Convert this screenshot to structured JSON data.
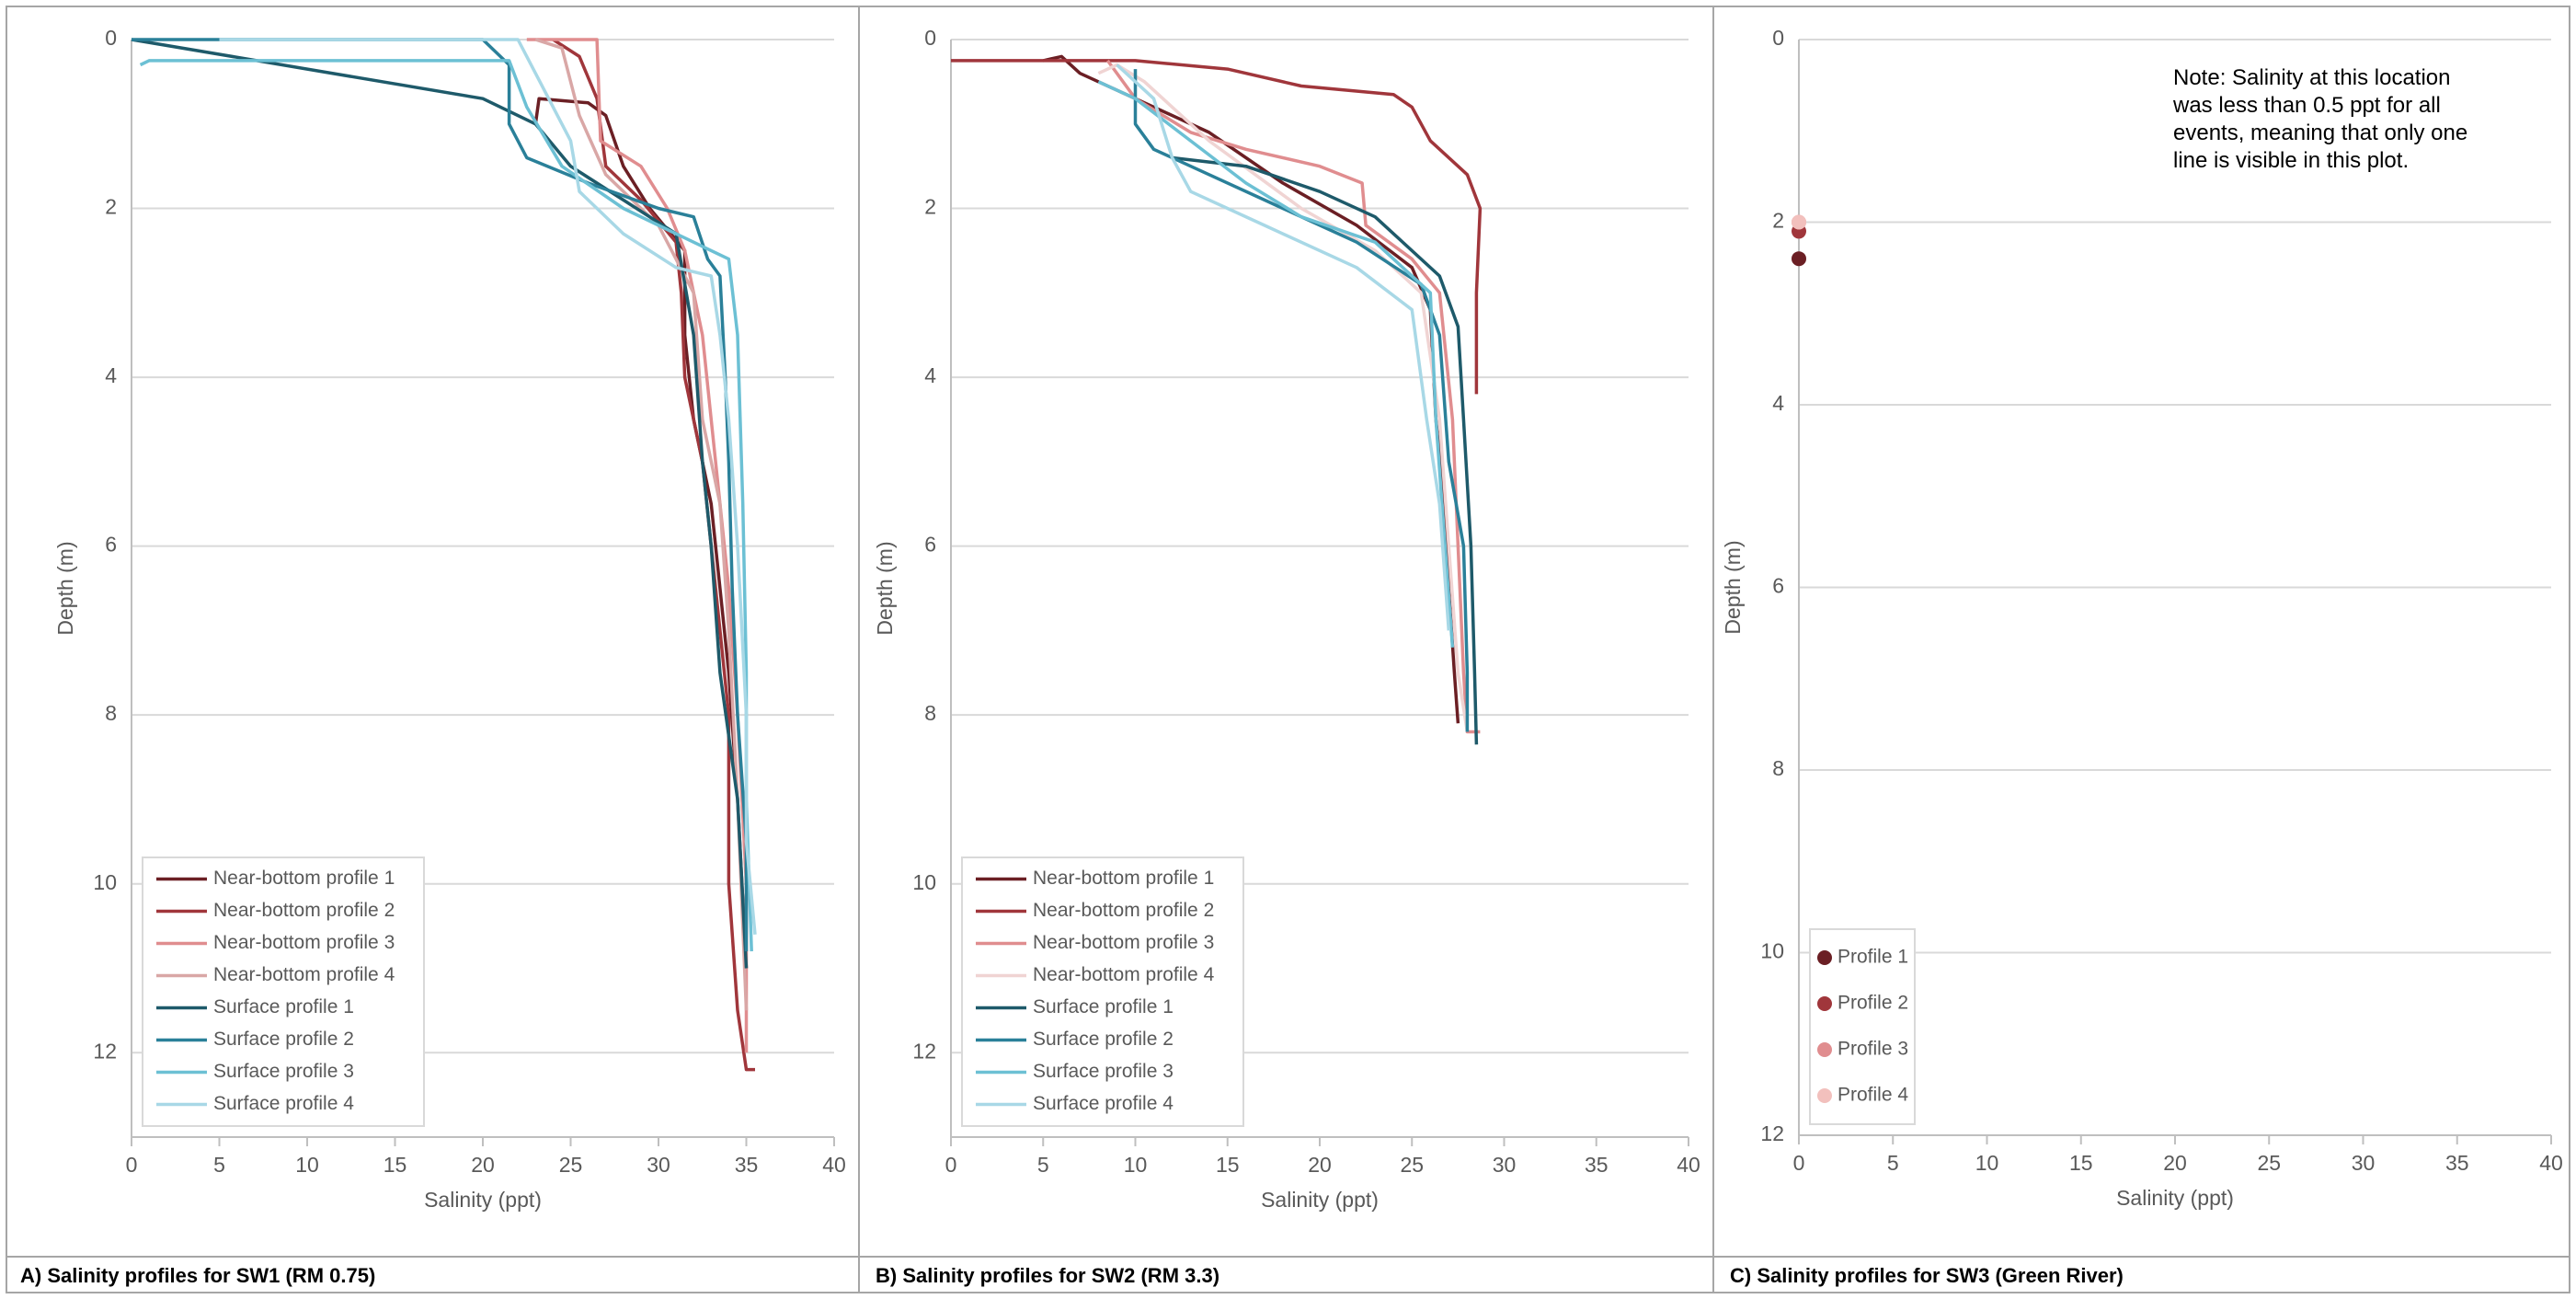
{
  "chart_data": [
    {
      "type": "line",
      "caption": "A) Salinity profiles for SW1 (RM 0.75)",
      "xlabel": "Salinity (ppt)",
      "ylabel": "Depth (m)",
      "xlim": [
        0,
        40
      ],
      "xticks": [
        0,
        5,
        10,
        15,
        20,
        25,
        30,
        35,
        40
      ],
      "ylim": [
        0,
        13
      ],
      "yticks": [
        0,
        2,
        4,
        6,
        8,
        10,
        12
      ],
      "y_inverted": true,
      "grid": true,
      "legend": "lower left",
      "series": [
        {
          "name": "Near-bottom profile 1",
          "color": "#6b1f24",
          "x": [
            23,
            23.2,
            26,
            27,
            28,
            29.5,
            31.5,
            31.5,
            32,
            33,
            33.5,
            34,
            34.5,
            35
          ],
          "y": [
            1.0,
            0.7,
            0.75,
            0.9,
            1.5,
            2.0,
            2.5,
            3.5,
            4.5,
            5.5,
            6.5,
            7.5,
            9,
            11
          ]
        },
        {
          "name": "Near-bottom profile 2",
          "color": "#a0363b",
          "x": [
            24,
            25.5,
            26.5,
            27,
            29,
            31,
            31.3,
            31.5,
            32.5,
            33,
            33.5,
            34,
            34,
            34,
            34.5,
            35,
            35.5
          ],
          "y": [
            0,
            0.2,
            0.7,
            1.5,
            1.9,
            2.4,
            3,
            4,
            5,
            6,
            7,
            8,
            9,
            10,
            11.5,
            12.2,
            12.2
          ]
        },
        {
          "name": "Near-bottom profile 3",
          "color": "#e08d8f",
          "x": [
            22.5,
            26.5,
            26.7,
            29,
            30.5,
            31.5,
            32.5,
            33,
            33.5,
            34,
            34.5,
            35,
            35
          ],
          "y": [
            0,
            0,
            1.2,
            1.5,
            2.0,
            2.5,
            3.5,
            4.5,
            5.5,
            6.5,
            8,
            10,
            12
          ]
        },
        {
          "name": "Near-bottom profile 4",
          "color": "#d9a7a6",
          "x": [
            23,
            24.5,
            25.5,
            27,
            30,
            32,
            32.5,
            33.5,
            34,
            34.5,
            35
          ],
          "y": [
            0,
            0.1,
            0.9,
            1.6,
            2.2,
            3,
            4.5,
            5.5,
            7,
            9,
            11.5
          ]
        },
        {
          "name": "Surface profile 1",
          "color": "#1e5a6a",
          "x": [
            0,
            20,
            23,
            25,
            28,
            31,
            32,
            32.5,
            33,
            33.5,
            34.5,
            35
          ],
          "y": [
            0,
            0.7,
            1.0,
            1.5,
            1.9,
            2.3,
            3.5,
            5,
            6,
            7.5,
            9,
            11
          ]
        },
        {
          "name": "Surface profile 2",
          "color": "#2a8099",
          "x": [
            0,
            20,
            21.5,
            21.5,
            22.5,
            26,
            30,
            32,
            32.8,
            33.5,
            33.8,
            34,
            34.2,
            34.5,
            35,
            35
          ],
          "y": [
            0,
            0,
            0.3,
            1.0,
            1.4,
            1.7,
            2.0,
            2.1,
            2.6,
            2.8,
            4,
            5,
            6.5,
            8,
            9.5,
            10.8
          ]
        },
        {
          "name": "Surface profile 3",
          "color": "#6cc0d4",
          "x": [
            0.5,
            1,
            21.5,
            22.5,
            24.5,
            28,
            31,
            34,
            34.5,
            34.8,
            35,
            35,
            35.3
          ],
          "y": [
            0.3,
            0.25,
            0.25,
            0.8,
            1.5,
            2.0,
            2.3,
            2.6,
            3.5,
            5.5,
            7.5,
            9,
            10.8
          ]
        },
        {
          "name": "Surface profile 4",
          "color": "#a8d8e6",
          "x": [
            5,
            22,
            23,
            25,
            25.5,
            26.5,
            28,
            31,
            33,
            33.5,
            34,
            34.5,
            35,
            35,
            35.5
          ],
          "y": [
            0,
            0,
            0.4,
            1.2,
            1.8,
            2.0,
            2.3,
            2.7,
            2.8,
            3.5,
            4.5,
            6,
            8,
            9.5,
            10.6
          ]
        }
      ]
    },
    {
      "type": "line",
      "caption": "B) Salinity profiles for SW2 (RM 3.3)",
      "xlabel": "Salinity (ppt)",
      "ylabel": "Depth (m)",
      "xlim": [
        0,
        40
      ],
      "xticks": [
        0,
        5,
        10,
        15,
        20,
        25,
        30,
        35,
        40
      ],
      "ylim": [
        0,
        13
      ],
      "yticks": [
        0,
        2,
        4,
        6,
        8,
        10,
        12
      ],
      "y_inverted": true,
      "grid": true,
      "legend": "lower left",
      "series": [
        {
          "name": "Near-bottom profile 1",
          "color": "#6b1f24",
          "x": [
            5,
            6,
            7,
            10,
            14,
            18,
            22,
            25,
            26,
            26.3,
            26.8,
            27,
            27.3,
            27.5
          ],
          "y": [
            0.25,
            0.2,
            0.4,
            0.7,
            1.1,
            1.7,
            2.2,
            2.7,
            3.2,
            4.5,
            5.5,
            6.5,
            7.5,
            8.1
          ]
        },
        {
          "name": "Near-bottom profile 2",
          "color": "#a0363b",
          "x": [
            0,
            10,
            15,
            19,
            24,
            25,
            26,
            28,
            28.7,
            28.5,
            28.5
          ],
          "y": [
            0.25,
            0.25,
            0.35,
            0.55,
            0.65,
            0.8,
            1.2,
            1.6,
            2.0,
            3,
            4.2
          ]
        },
        {
          "name": "Near-bottom profile 3",
          "color": "#e08d8f",
          "x": [
            8.5,
            10,
            13,
            16,
            20,
            22.3,
            22.5,
            25,
            26.5,
            27.2,
            27.5,
            27.8,
            28,
            28.7
          ],
          "y": [
            0.25,
            0.7,
            1.1,
            1.3,
            1.5,
            1.7,
            2.2,
            2.6,
            3.0,
            4.5,
            6,
            7.5,
            8.2,
            8.2
          ]
        },
        {
          "name": "Near-bottom profile 4",
          "color": "#f0d4d3",
          "x": [
            8,
            9,
            10.5,
            14,
            19,
            23,
            25.5,
            26.5,
            27,
            27.5,
            28
          ],
          "y": [
            0.4,
            0.3,
            0.5,
            1.2,
            2.0,
            2.5,
            3,
            4.5,
            6,
            7.5,
            8.2
          ]
        },
        {
          "name": "Surface profile 1",
          "color": "#1e5a6a",
          "x": [
            12,
            16,
            20,
            23,
            26.5,
            27.5,
            27.8,
            28.2,
            28.4,
            28.5
          ],
          "y": [
            1.4,
            1.5,
            1.8,
            2.1,
            2.8,
            3.4,
            4.5,
            6,
            7.5,
            8.35
          ]
        },
        {
          "name": "Surface profile 2",
          "color": "#2a8099",
          "x": [
            10,
            10,
            11,
            14,
            18,
            22,
            25.5,
            26.5,
            27,
            27.8,
            28,
            28
          ],
          "y": [
            0.35,
            1.0,
            1.3,
            1.6,
            2.0,
            2.4,
            2.9,
            3.5,
            5,
            6,
            7.5,
            8.2
          ]
        },
        {
          "name": "Surface profile 3",
          "color": "#6cc0d4",
          "x": [
            8,
            10,
            13,
            16,
            19,
            23,
            26,
            26.3,
            26.8,
            27.2
          ],
          "y": [
            0.5,
            0.7,
            1.2,
            1.7,
            2.1,
            2.4,
            3.0,
            4.5,
            6,
            7.2
          ]
        },
        {
          "name": "Surface profile 4",
          "color": "#a8d8e6",
          "x": [
            9,
            11,
            12,
            13,
            17,
            22,
            25,
            25.8,
            26.5,
            27
          ],
          "y": [
            0.3,
            0.7,
            1.4,
            1.8,
            2.2,
            2.7,
            3.2,
            4.5,
            5.5,
            7
          ]
        }
      ]
    },
    {
      "type": "scatter",
      "caption": "C) Salinity profiles for SW3 (Green River)",
      "xlabel": "Salinity (ppt)",
      "ylabel": "Depth (m)",
      "xlim": [
        0,
        40
      ],
      "xticks": [
        0,
        5,
        10,
        15,
        20,
        25,
        30,
        35,
        40
      ],
      "ylim": [
        0,
        12
      ],
      "yticks": [
        0,
        2,
        4,
        6,
        8,
        10,
        12
      ],
      "y_inverted": true,
      "grid": true,
      "legend": "lower left",
      "annotation": "Note: Salinity at this location was less than 0.5 ppt for all events, meaning that only one line is visible in this plot.",
      "series": [
        {
          "name": "Profile 1",
          "color": "#6b1f24",
          "x": [
            0
          ],
          "y": [
            2.4
          ]
        },
        {
          "name": "Profile 2",
          "color": "#a0363b",
          "x": [
            0
          ],
          "y": [
            2.1
          ]
        },
        {
          "name": "Profile 3",
          "color": "#e08d8f",
          "x": [
            0
          ],
          "y": [
            2.0
          ]
        },
        {
          "name": "Profile 4",
          "color": "#f2c0bd",
          "x": [
            0
          ],
          "y": [
            2.0
          ]
        }
      ]
    }
  ]
}
